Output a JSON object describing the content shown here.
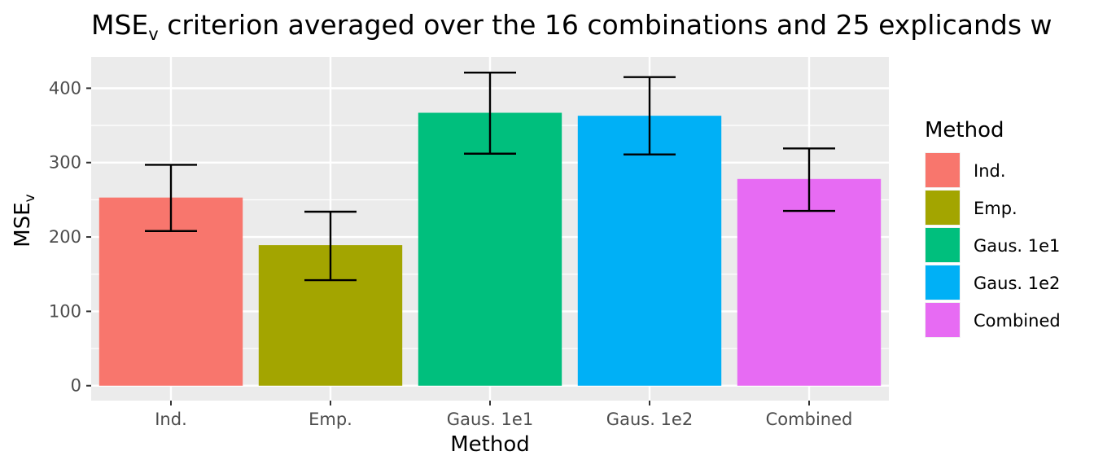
{
  "chart_data": {
    "type": "bar",
    "title": "MSE",
    "title_subscript": "v",
    "title_rest": " criterion averaged over the 16 combinations and 25 explicands w",
    "xlabel": "Method",
    "ylabel": "MSE",
    "ylabel_subscript": "v",
    "categories": [
      "Ind.",
      "Emp.",
      "Gaus. 1e1",
      "Gaus. 1e2",
      "Combined"
    ],
    "values": [
      253,
      189,
      367,
      363,
      278
    ],
    "error_low": [
      208,
      142,
      312,
      311,
      235
    ],
    "error_high": [
      297,
      234,
      421,
      415,
      319
    ],
    "colors": [
      "#F8766D",
      "#A3A500",
      "#00BF7D",
      "#00B0F6",
      "#E76BF3"
    ],
    "ylim": [
      -20,
      442
    ],
    "yticks": [
      0,
      100,
      200,
      300,
      400
    ],
    "grid": true,
    "legend": {
      "title": "Method",
      "position": "right",
      "entries": [
        "Ind.",
        "Emp.",
        "Gaus. 1e1",
        "Gaus. 1e2",
        "Combined"
      ]
    }
  }
}
